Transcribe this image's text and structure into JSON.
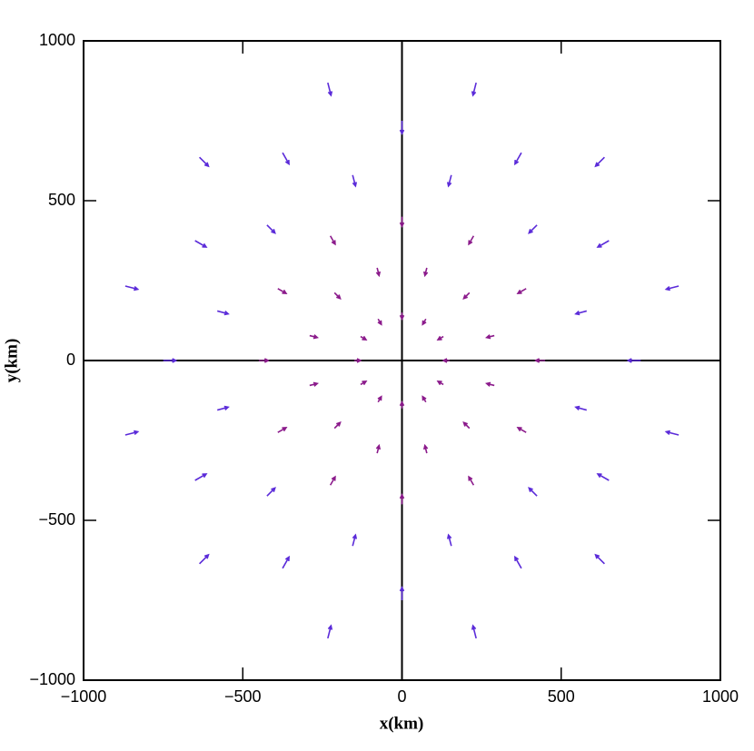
{
  "chart_data": {
    "type": "quiver",
    "x_label": "x(km)",
    "y_label": "y(km)",
    "xlim": [
      -1000,
      1000
    ],
    "ylim": [
      -1000,
      1000
    ],
    "xticks": [
      {
        "value": -1000,
        "label": "−1000"
      },
      {
        "value": -500,
        "label": "−500"
      },
      0,
      500,
      1000
    ],
    "yticks": [
      {
        "value": -1000,
        "label": "−1000"
      },
      {
        "value": -500,
        "label": "−500"
      },
      0,
      500,
      1000
    ],
    "zero_lines": true,
    "series": [
      {
        "color": "#8b1a8b",
        "x": [
          150,
          130,
          75,
          0,
          -75,
          -130,
          -150,
          -130,
          -75,
          0,
          75,
          130,
          290,
          212,
          78,
          -78,
          -212,
          -290,
          -290,
          -212,
          -78,
          78,
          212,
          290,
          450,
          390,
          225,
          0,
          -225,
          -390,
          -450,
          -390,
          -225,
          0,
          225,
          390
        ],
        "y": [
          0,
          75,
          130,
          150,
          130,
          75,
          0,
          -75,
          -130,
          -150,
          -130,
          -75,
          78,
          212,
          290,
          290,
          212,
          78,
          -78,
          -212,
          -290,
          -290,
          -212,
          -78,
          0,
          225,
          390,
          450,
          390,
          225,
          0,
          -225,
          -390,
          -450,
          -390,
          -225
        ],
        "u": [
          -20,
          -17,
          -10,
          0,
          10,
          17,
          20,
          17,
          10,
          0,
          -10,
          -17,
          -24,
          -18,
          -6,
          6,
          18,
          24,
          24,
          18,
          6,
          -6,
          -18,
          -24,
          -30,
          -26,
          -15,
          0,
          15,
          26,
          30,
          26,
          15,
          0,
          -15,
          -26
        ],
        "v": [
          0,
          -10,
          -17,
          -20,
          -17,
          -10,
          0,
          10,
          17,
          20,
          17,
          10,
          -6,
          -18,
          -24,
          -24,
          -18,
          -6,
          6,
          18,
          24,
          24,
          18,
          6,
          0,
          -15,
          -26,
          -30,
          -26,
          -15,
          0,
          15,
          26,
          30,
          26,
          15
        ]
      },
      {
        "color": "#5b2bd9",
        "x": [
          580,
          424,
          155,
          -155,
          -424,
          -580,
          -580,
          -424,
          -155,
          155,
          424,
          580,
          750,
          650,
          375,
          0,
          -375,
          -650,
          -750,
          -650,
          -375,
          0,
          375,
          650,
          869,
          636,
          233,
          -233,
          -636,
          -869,
          -869,
          -636,
          -233,
          233,
          636,
          869
        ],
        "y": [
          155,
          424,
          580,
          580,
          424,
          155,
          -155,
          -424,
          -580,
          -580,
          -424,
          -155,
          0,
          375,
          650,
          750,
          650,
          375,
          0,
          -375,
          -650,
          -750,
          -650,
          -375,
          233,
          636,
          869,
          869,
          636,
          233,
          -233,
          -636,
          -869,
          -869,
          -636,
          -233
        ],
        "u": [
          -34,
          -25,
          -9,
          9,
          25,
          34,
          34,
          25,
          9,
          -9,
          -25,
          -34,
          -40,
          -35,
          -20,
          0,
          20,
          35,
          40,
          35,
          20,
          0,
          -20,
          -35,
          -39,
          -28,
          -10,
          10,
          28,
          39,
          39,
          28,
          10,
          -10,
          -28,
          -39
        ],
        "v": [
          -9,
          -25,
          -34,
          -34,
          -25,
          -9,
          9,
          25,
          34,
          34,
          25,
          9,
          0,
          -20,
          -35,
          -40,
          -35,
          -20,
          0,
          20,
          35,
          40,
          35,
          20,
          -10,
          -28,
          -39,
          -39,
          -28,
          -10,
          10,
          28,
          39,
          39,
          28,
          10
        ]
      }
    ]
  }
}
